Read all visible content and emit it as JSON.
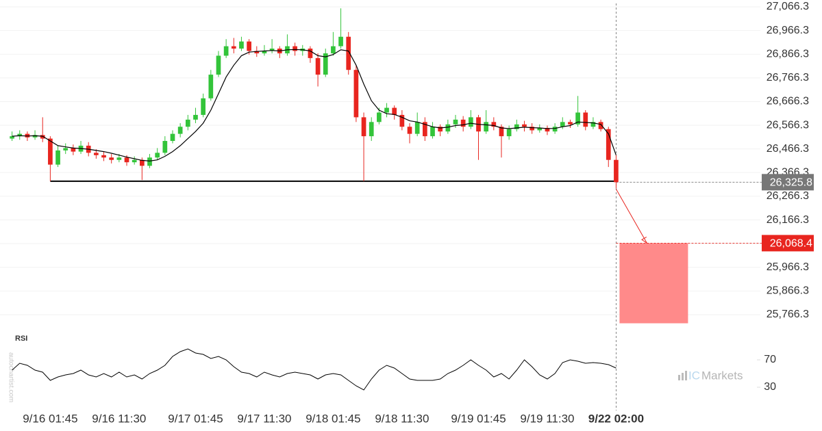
{
  "chart_data": {
    "type": "candlestick",
    "up_color": "#33c43a",
    "down_color": "#e8251f",
    "categories": [
      null,
      null,
      null,
      null,
      null,
      "9/16 01:45",
      null,
      null,
      null,
      null,
      null,
      null,
      null,
      null,
      "9/16 11:30",
      null,
      null,
      null,
      null,
      null,
      null,
      null,
      null,
      null,
      "9/17 01:45",
      null,
      null,
      null,
      null,
      null,
      null,
      null,
      null,
      "9/17 11:30",
      null,
      null,
      null,
      null,
      null,
      null,
      null,
      null,
      "9/18 01:45",
      null,
      null,
      null,
      null,
      null,
      null,
      null,
      null,
      "9/18 11:30",
      null,
      null,
      null,
      null,
      null,
      null,
      null,
      null,
      null,
      "9/19 01:45",
      null,
      null,
      null,
      null,
      null,
      null,
      null,
      null,
      "9/19 11:30",
      null,
      null,
      null,
      null,
      null,
      null,
      null,
      null,
      "9/22 02:00"
    ],
    "ohlc": [
      [
        26510,
        26540,
        26500,
        26520
      ],
      [
        26520,
        26545,
        26505,
        26530
      ],
      [
        26530,
        26540,
        26500,
        26515
      ],
      [
        26515,
        26545,
        26505,
        26525
      ],
      [
        26525,
        26600,
        26495,
        26510
      ],
      [
        26510,
        26520,
        26330,
        26400
      ],
      [
        26400,
        26480,
        26390,
        26460
      ],
      [
        26460,
        26490,
        26445,
        26470
      ],
      [
        26470,
        26485,
        26440,
        26455
      ],
      [
        26455,
        26500,
        26445,
        26480
      ],
      [
        26480,
        26495,
        26435,
        26450
      ],
      [
        26450,
        26465,
        26425,
        26440
      ],
      [
        26440,
        26455,
        26415,
        26430
      ],
      [
        26430,
        26445,
        26405,
        26420
      ],
      [
        26420,
        26445,
        26410,
        26430
      ],
      [
        26430,
        26440,
        26395,
        26410
      ],
      [
        26410,
        26435,
        26400,
        26420
      ],
      [
        26420,
        26430,
        26335,
        26395
      ],
      [
        26395,
        26445,
        26385,
        26430
      ],
      [
        26430,
        26470,
        26420,
        26450
      ],
      [
        26450,
        26520,
        26440,
        26500
      ],
      [
        26500,
        26545,
        26490,
        26530
      ],
      [
        26530,
        26575,
        26515,
        26560
      ],
      [
        26560,
        26610,
        26545,
        26590
      ],
      [
        26590,
        26640,
        26575,
        26610
      ],
      [
        26610,
        26700,
        26600,
        26680
      ],
      [
        26680,
        26800,
        26670,
        26780
      ],
      [
        26780,
        26880,
        26770,
        26860
      ],
      [
        26860,
        26930,
        26850,
        26900
      ],
      [
        26900,
        26935,
        26870,
        26890
      ],
      [
        26890,
        26940,
        26880,
        26920
      ],
      [
        26920,
        26930,
        26865,
        26880
      ],
      [
        26880,
        26900,
        26855,
        26870
      ],
      [
        26870,
        26905,
        26860,
        26880
      ],
      [
        26880,
        26930,
        26870,
        26890
      ],
      [
        26890,
        26900,
        26850,
        26870
      ],
      [
        26870,
        26950,
        26860,
        26900
      ],
      [
        26900,
        26915,
        26860,
        26880
      ],
      [
        26880,
        26905,
        26860,
        26890
      ],
      [
        26890,
        26900,
        26830,
        26850
      ],
      [
        26850,
        26870,
        26730,
        26780
      ],
      [
        26780,
        26890,
        26770,
        26870
      ],
      [
        26870,
        26960,
        26860,
        26900
      ],
      [
        26900,
        27060,
        26890,
        26940
      ],
      [
        26940,
        26960,
        26780,
        26800
      ],
      [
        26800,
        26820,
        26580,
        26600
      ],
      [
        26600,
        26620,
        26330,
        26520
      ],
      [
        26520,
        26600,
        26500,
        26580
      ],
      [
        26580,
        26640,
        26570,
        26620
      ],
      [
        26620,
        26660,
        26600,
        26640
      ],
      [
        26640,
        26650,
        26590,
        26610
      ],
      [
        26610,
        26630,
        26545,
        26560
      ],
      [
        26560,
        26575,
        26490,
        26530
      ],
      [
        26530,
        26620,
        26520,
        26580
      ],
      [
        26580,
        26600,
        26500,
        26520
      ],
      [
        26520,
        26580,
        26510,
        26560
      ],
      [
        26560,
        26570,
        26520,
        26540
      ],
      [
        26540,
        26590,
        26530,
        26570
      ],
      [
        26570,
        26610,
        26555,
        26590
      ],
      [
        26590,
        26605,
        26540,
        26560
      ],
      [
        26560,
        26630,
        26550,
        26600
      ],
      [
        26600,
        26610,
        26420,
        26540
      ],
      [
        26540,
        26630,
        26530,
        26580
      ],
      [
        26580,
        26600,
        26545,
        26560
      ],
      [
        26560,
        26570,
        26430,
        26520
      ],
      [
        26520,
        26565,
        26505,
        26550
      ],
      [
        26550,
        26590,
        26540,
        26570
      ],
      [
        26570,
        26585,
        26540,
        26560
      ],
      [
        26560,
        26575,
        26530,
        26545
      ],
      [
        26545,
        26570,
        26535,
        26555
      ],
      [
        26555,
        26565,
        26525,
        26540
      ],
      [
        26540,
        26575,
        26530,
        26560
      ],
      [
        26560,
        26600,
        26550,
        26580
      ],
      [
        26580,
        26590,
        26555,
        26570
      ],
      [
        26570,
        26690,
        26560,
        26620
      ],
      [
        26620,
        26630,
        26545,
        26560
      ],
      [
        26560,
        26600,
        26550,
        26580
      ],
      [
        26580,
        26590,
        26540,
        26550
      ],
      [
        26550,
        26560,
        26390,
        26420
      ],
      [
        26420,
        26440,
        26300,
        26325.8
      ]
    ],
    "ma": {
      "color": "#000000",
      "values": [
        26520,
        26522,
        26521,
        26522,
        26520,
        26500,
        26480,
        26475,
        26470,
        26468,
        26465,
        26460,
        26455,
        26448,
        26440,
        26432,
        26425,
        26418,
        26415,
        26420,
        26435,
        26455,
        26480,
        26510,
        26540,
        26575,
        26630,
        26700,
        26770,
        26820,
        26860,
        26875,
        26878,
        26880,
        26882,
        26880,
        26885,
        26886,
        26885,
        26880,
        26860,
        26855,
        26865,
        26885,
        26880,
        26820,
        26740,
        26670,
        26630,
        26615,
        26612,
        26600,
        26585,
        26580,
        26570,
        26560,
        26555,
        26558,
        26565,
        26568,
        26575,
        26570,
        26568,
        26565,
        26555,
        26552,
        26555,
        26558,
        26556,
        26555,
        26552,
        26553,
        26560,
        26565,
        26580,
        26578,
        26576,
        26570,
        26530,
        26440
      ]
    },
    "ylim": [
      25708.5,
      27095.2
    ],
    "yticks": [
      {
        "value": 25766.3,
        "label": "25,766.3"
      },
      {
        "value": 25866.3,
        "label": "25,866.3"
      },
      {
        "value": 25966.3,
        "label": "25,966.3"
      },
      {
        "value": 26066.3,
        "label": "26,066.3"
      },
      {
        "value": 26166.3,
        "label": "26,166.3"
      },
      {
        "value": 26266.3,
        "label": "26,266.3"
      },
      {
        "value": 26366.3,
        "label": "26,366.3"
      },
      {
        "value": 26466.3,
        "label": "26,466.3"
      },
      {
        "value": 26566.3,
        "label": "26,566.3"
      },
      {
        "value": 26666.3,
        "label": "26,666.3"
      },
      {
        "value": 26766.3,
        "label": "26,766.3"
      },
      {
        "value": 26866.3,
        "label": "26,866.3"
      },
      {
        "value": 26966.3,
        "label": "26,966.3"
      },
      {
        "value": 27066.3,
        "label": "27,066.3"
      }
    ],
    "grid": true,
    "support": 26330,
    "last_price": {
      "value": 26325.8,
      "label": "26,325.8"
    },
    "target": {
      "value": 26068.4,
      "label": "26,068.4"
    },
    "forecast_zone": [
      26068.4,
      25730
    ],
    "rsi": {
      "label": "RSI",
      "ylim": [
        0,
        100
      ],
      "yticks": [
        70,
        30
      ],
      "values": [
        55,
        65,
        62,
        55,
        52,
        40,
        45,
        48,
        50,
        55,
        48,
        45,
        50,
        45,
        52,
        45,
        48,
        42,
        50,
        55,
        62,
        75,
        82,
        86,
        80,
        78,
        72,
        75,
        70,
        60,
        52,
        50,
        45,
        52,
        48,
        45,
        50,
        52,
        50,
        48,
        42,
        48,
        50,
        48,
        40,
        32,
        26,
        42,
        55,
        62,
        58,
        50,
        42,
        40,
        40,
        40,
        42,
        50,
        55,
        62,
        70,
        62,
        55,
        45,
        50,
        42,
        55,
        70,
        60,
        48,
        42,
        50,
        66,
        70,
        68,
        65,
        66,
        65,
        63,
        58
      ]
    },
    "watermark": "autochartist.com",
    "logo": [
      "IC",
      "Markets"
    ]
  }
}
